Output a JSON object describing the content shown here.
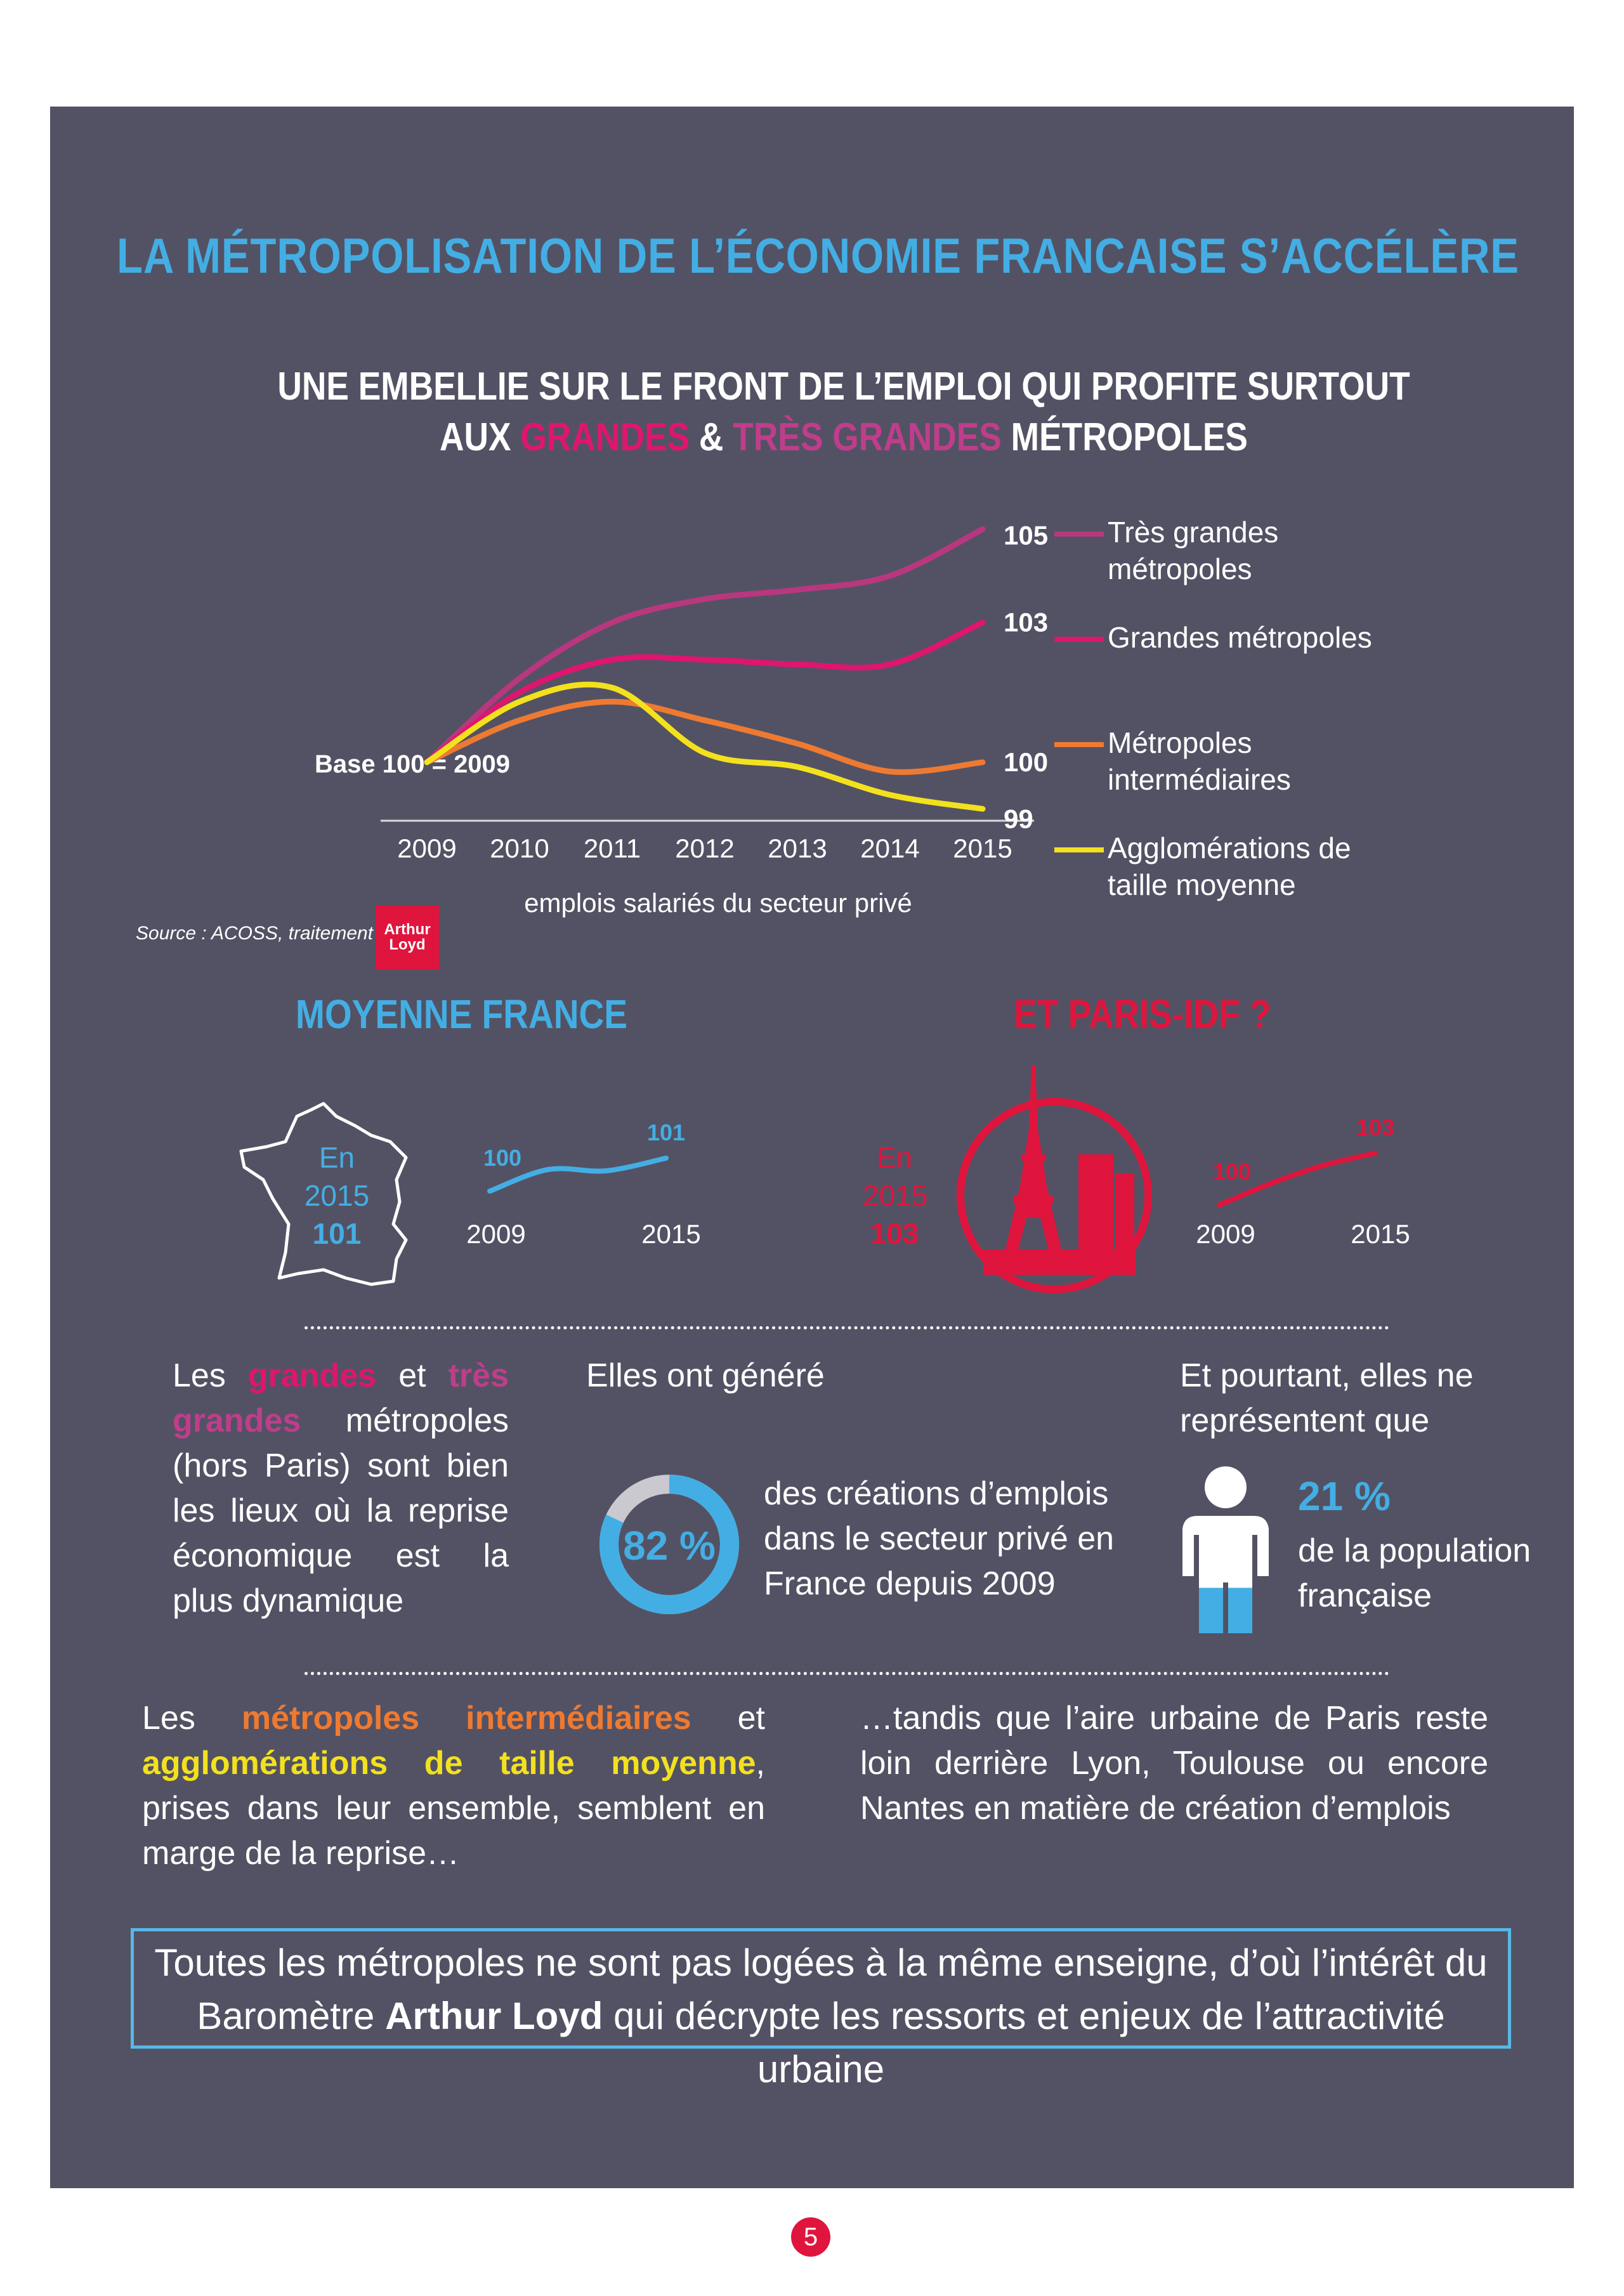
{
  "header": {
    "title": "LA MÉTROPOLISATION DE L’ÉCONOMIE FRANCAISE S’ACCÉLÈRE",
    "subtitle_line1": "UNE EMBELLIE SUR LE FRONT DE L’EMPLOI QUI PROFITE SURTOUT",
    "subtitle_aux": "AUX ",
    "subtitle_grandes": "GRANDES",
    "subtitle_amp": " & ",
    "subtitle_tres": "TRÈS GRANDES",
    "subtitle_end": " MÉTROPOLES"
  },
  "chart_data": [
    {
      "type": "line",
      "xlabel": "emplois salariés du secteur privé",
      "x": [
        "2009",
        "2010",
        "2011",
        "2012",
        "2013",
        "2014",
        "2015"
      ],
      "annotation": "Base 100 = 2009",
      "series": [
        {
          "name": "Très grandes métropoles",
          "color": "#b9377e",
          "values": [
            100,
            101.8,
            103,
            103.5,
            103.7,
            104,
            105
          ],
          "end_label": "105"
        },
        {
          "name": "Grandes métropoles",
          "color": "#e0156f",
          "values": [
            100,
            101.5,
            102.2,
            102.2,
            102.1,
            102.1,
            103
          ],
          "end_label": "103"
        },
        {
          "name": "Métropoles intermédiaires",
          "color": "#ee7a32",
          "values": [
            100,
            100.9,
            101.3,
            100.9,
            100.4,
            99.8,
            100
          ],
          "end_label": "100"
        },
        {
          "name": "Agglomérations de taille moyenne",
          "color": "#f3e11e",
          "values": [
            100,
            101.3,
            101.6,
            100.2,
            99.9,
            99.3,
            99
          ],
          "end_label": "99"
        }
      ],
      "ylim": [
        98.8,
        105.4
      ]
    },
    {
      "type": "line",
      "x": [
        "2009",
        "2015"
      ],
      "series": [
        {
          "name": "",
          "color": "#43aee4",
          "values": [
            100,
            101
          ]
        }
      ],
      "start_label": "100",
      "end_label": "101"
    },
    {
      "type": "line",
      "x": [
        "2009",
        "2015"
      ],
      "series": [
        {
          "name": "",
          "color": "#e0153d",
          "values": [
            100,
            103
          ]
        }
      ],
      "start_label": "100",
      "end_label": "103"
    }
  ],
  "legend": [
    {
      "line1": "Très grandes",
      "line2": "métropoles",
      "color": "#b9377e"
    },
    {
      "line1": "Grandes métropoles",
      "line2": "",
      "color": "#e0156f"
    },
    {
      "line1": "Métropoles",
      "line2": "intermédiaires",
      "color": "#ee7a32"
    },
    {
      "line1": "Agglomérations de",
      "line2": "taille moyenne",
      "color": "#f3e11e"
    }
  ],
  "source": {
    "text": "Source : ACOSS, traitement",
    "logo_line1": "Arthur",
    "logo_line2": "Loyd"
  },
  "france": {
    "heading": "MOYENNE FRANCE",
    "en": "En",
    "year": "2015",
    "value": "101"
  },
  "paris": {
    "heading": "ET PARIS-IDF ?",
    "en": "En",
    "year": "2015",
    "value": "103"
  },
  "col1": {
    "les": "Les",
    "grandes": "grandes",
    "et": "et",
    "tres": "très",
    "grandes2": "grandes",
    "rest": "métropoles (hors Paris) sont bien les lieux où la reprise économique est la plus dynamique"
  },
  "col2": {
    "intro": "Elles ont généré",
    "percent": "82 %",
    "percent_value": 0.82,
    "text": "des créations d’emplois dans le secteur privé en France depuis 2009"
  },
  "col3": {
    "intro": "Et pourtant, elles ne représentent que",
    "percent": "21 %",
    "percent_value": 0.21,
    "text": "de la population française",
    "icon": "person-icon"
  },
  "bottom_left": {
    "les": "Les",
    "metropoles": "métropoles",
    "intermediaires": "intermédiaires",
    "et": "et",
    "agglo": "agglomérations de taille moyenne",
    "rest": ", prises dans leur ensemble, semblent en marge de la reprise…"
  },
  "bottom_right": {
    "text": "…tandis que l’aire urbaine de Paris reste loin derrière Lyon, Toulouse ou encore Nantes en matière de création d’emplois"
  },
  "conclusion": {
    "line1": "Toutes les métropoles ne sont pas logées à la même enseigne, d’où l’intérêt du",
    "line2_pre": "Baromètre ",
    "brand": "Arthur Loyd",
    "line2_post": "  qui décrypte les ressorts et enjeux de l’attractivité urbaine"
  },
  "page_number": "5",
  "colors": {
    "background_panel": "#535264",
    "blue_accent": "#43aee4",
    "red_accent": "#e0153d"
  }
}
